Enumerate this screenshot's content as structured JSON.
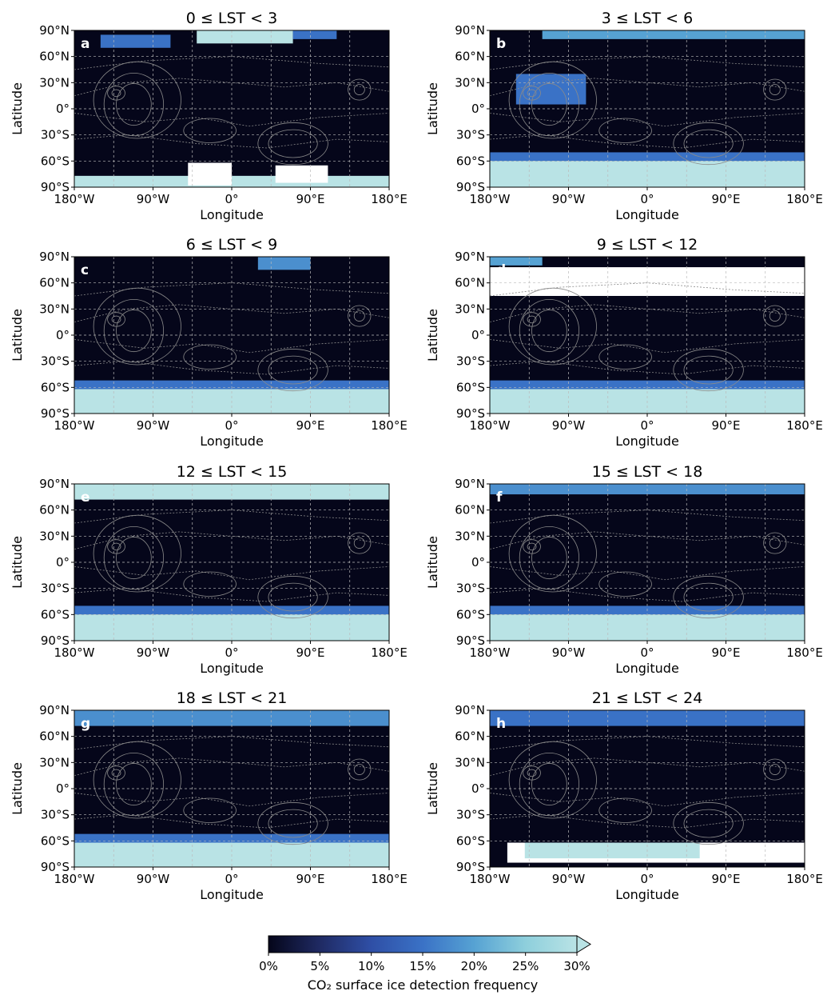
{
  "chart_data": {
    "type": "heatmap",
    "layout": "4 rows x 2 columns of maps",
    "panels": [
      {
        "letter": "a",
        "title": "0 ≤ LST < 3",
        "regions": [
          {
            "lat": [
              75,
              90
            ],
            "lon": [
              -40,
              70
            ],
            "freq": 30
          },
          {
            "lat": [
              80,
              90
            ],
            "lon": [
              70,
              120
            ],
            "freq": 15
          },
          {
            "lat": [
              70,
              85
            ],
            "lon": [
              -150,
              -70
            ],
            "freq": 15
          },
          {
            "lat": [
              -90,
              -77
            ],
            "lon": [
              -180,
              180
            ],
            "freq": 30
          },
          {
            "lat": [
              -88,
              -62
            ],
            "lon": [
              -50,
              0
            ],
            "freq": null
          },
          {
            "lat": [
              -85,
              -65
            ],
            "lon": [
              50,
              110
            ],
            "freq": null
          }
        ]
      },
      {
        "letter": "b",
        "title": "3 ≤ LST < 6",
        "regions": [
          {
            "lat": [
              80,
              90
            ],
            "lon": [
              -120,
              180
            ],
            "freq": 20
          },
          {
            "lat": [
              5,
              40
            ],
            "lon": [
              -150,
              -70
            ],
            "freq": 15
          },
          {
            "lat": [
              -60,
              -50
            ],
            "lon": [
              -180,
              180
            ],
            "freq": 15
          },
          {
            "lat": [
              -90,
              -60
            ],
            "lon": [
              -180,
              180
            ],
            "freq": 30
          }
        ]
      },
      {
        "letter": "c",
        "title": "6 ≤ LST < 9",
        "regions": [
          {
            "lat": [
              75,
              90
            ],
            "lon": [
              30,
              90
            ],
            "freq": 18
          },
          {
            "lat": [
              -62,
              -52
            ],
            "lon": [
              -180,
              180
            ],
            "freq": 15
          },
          {
            "lat": [
              -90,
              -62
            ],
            "lon": [
              -180,
              180
            ],
            "freq": 30
          }
        ]
      },
      {
        "letter": "d",
        "title": "9 ≤ LST < 12",
        "regions": [
          {
            "lat": [
              45,
              78
            ],
            "lon": [
              -180,
              180
            ],
            "freq": null
          },
          {
            "lat": [
              80,
              90
            ],
            "lon": [
              -180,
              -120
            ],
            "freq": 20
          },
          {
            "lat": [
              -62,
              -52
            ],
            "lon": [
              -180,
              180
            ],
            "freq": 15
          },
          {
            "lat": [
              -90,
              -62
            ],
            "lon": [
              -180,
              180
            ],
            "freq": 30
          }
        ]
      },
      {
        "letter": "e",
        "title": "12 ≤ LST < 15",
        "regions": [
          {
            "lat": [
              72,
              90
            ],
            "lon": [
              -180,
              180
            ],
            "freq": 30
          },
          {
            "lat": [
              -60,
              -50
            ],
            "lon": [
              -180,
              180
            ],
            "freq": 15
          },
          {
            "lat": [
              -90,
              -60
            ],
            "lon": [
              -180,
              180
            ],
            "freq": 30
          }
        ]
      },
      {
        "letter": "f",
        "title": "15 ≤ LST < 18",
        "regions": [
          {
            "lat": [
              78,
              90
            ],
            "lon": [
              -180,
              180
            ],
            "freq": 18
          },
          {
            "lat": [
              -60,
              -50
            ],
            "lon": [
              -180,
              180
            ],
            "freq": 15
          },
          {
            "lat": [
              -90,
              -60
            ],
            "lon": [
              -180,
              180
            ],
            "freq": 30
          }
        ]
      },
      {
        "letter": "g",
        "title": "18 ≤ LST < 21",
        "regions": [
          {
            "lat": [
              72,
              90
            ],
            "lon": [
              -180,
              180
            ],
            "freq": 18
          },
          {
            "lat": [
              -62,
              -52
            ],
            "lon": [
              -180,
              180
            ],
            "freq": 15
          },
          {
            "lat": [
              -90,
              -62
            ],
            "lon": [
              -180,
              180
            ],
            "freq": 30
          }
        ]
      },
      {
        "letter": "h",
        "title": "21 ≤ LST < 24",
        "regions": [
          {
            "lat": [
              72,
              90
            ],
            "lon": [
              -180,
              180
            ],
            "freq": 15
          },
          {
            "lat": [
              -85,
              -62
            ],
            "lon": [
              -160,
              180
            ],
            "freq": null
          },
          {
            "lat": [
              -80,
              -62
            ],
            "lon": [
              -140,
              60
            ],
            "freq": 30
          }
        ]
      }
    ],
    "xlabel": "Longitude",
    "ylabel": "Latitude",
    "x_ticks": [
      "180°W",
      "90°W",
      "0°",
      "90°E",
      "180°E"
    ],
    "y_ticks": [
      "90°N",
      "60°N",
      "30°N",
      "0°",
      "30°S",
      "60°S",
      "90°S"
    ],
    "xlim": [
      -180,
      180
    ],
    "ylim": [
      -90,
      90
    ],
    "grid": true,
    "colorbar": {
      "label": "CO₂ surface ice detection frequency",
      "ticks": [
        "0%",
        "5%",
        "10%",
        "15%",
        "20%",
        "25%",
        "30%"
      ],
      "range": [
        0,
        30
      ],
      "extend": "max",
      "colors": [
        "#05061a",
        "#1f2a63",
        "#2f4fa6",
        "#3a72c6",
        "#56a2d3",
        "#8ecfdc",
        "#b9e3e5"
      ]
    }
  }
}
